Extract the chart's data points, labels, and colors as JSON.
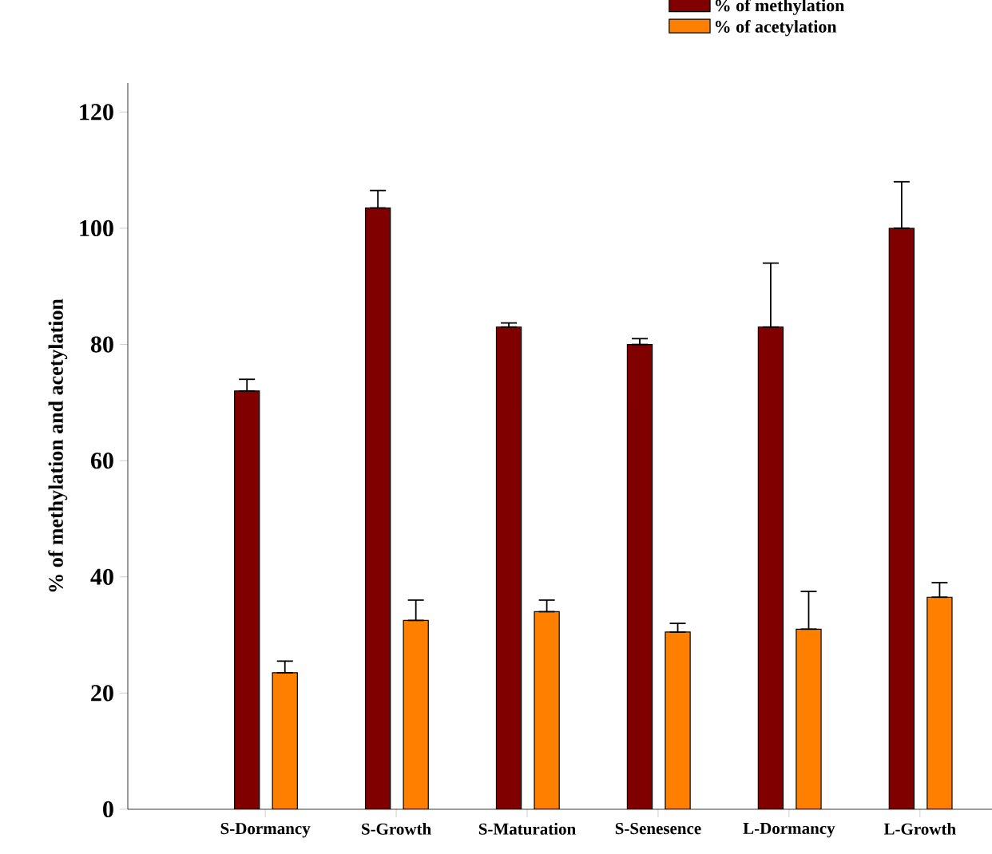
{
  "chart_data": {
    "type": "bar",
    "ylabel": "% of methylation and acetylation",
    "categories": [
      "S-Dormancy",
      "S-Growth",
      "S-Maturation",
      "S-Senesence",
      "L-Dormancy",
      "L-Growth"
    ],
    "series": [
      {
        "name": "% of methylation",
        "color": "#800000",
        "values": [
          72,
          103.5,
          83,
          80,
          83,
          100
        ],
        "errors": [
          [
            72,
            74
          ],
          [
            103.5,
            106.5
          ],
          [
            83,
            83.7
          ],
          [
            80,
            81
          ],
          [
            83,
            94
          ],
          [
            100,
            108
          ]
        ]
      },
      {
        "name": "% of acetylation",
        "color": "#ff8000",
        "values": [
          23.5,
          32.5,
          34,
          30.5,
          31,
          36.5
        ],
        "errors": [
          [
            23.5,
            25.5
          ],
          [
            32.5,
            36
          ],
          [
            34,
            36
          ],
          [
            30.5,
            32
          ],
          [
            31,
            37.5
          ],
          [
            36.5,
            39
          ]
        ]
      }
    ],
    "ylim": [
      0,
      125
    ],
    "yticks": [
      0,
      20,
      40,
      60,
      80,
      100,
      120
    ],
    "legend": "top right",
    "grid": false
  }
}
